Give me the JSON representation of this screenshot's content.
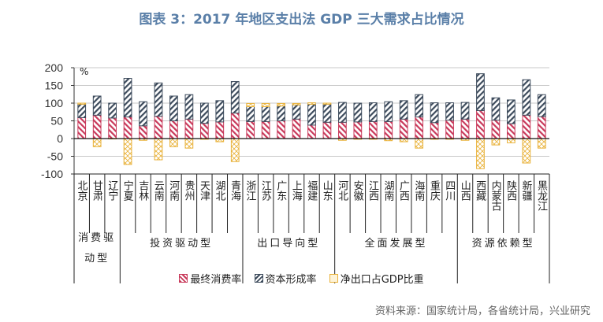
{
  "title": "图表 3：2017 年地区支出法 GDP 三大需求占比情况",
  "source": "资料来源：国家统计局，各省统计局，兴业研究",
  "chart_data": {
    "type": "bar",
    "stacked": true,
    "unit": "%",
    "ylim": [
      -100,
      200
    ],
    "yticks": [
      -100,
      -50,
      0,
      50,
      100,
      150,
      200
    ],
    "grid": true,
    "legend_position": "bottom",
    "categories": [
      "北京",
      "甘肃",
      "辽宁",
      "宁夏",
      "吉林",
      "云南",
      "河南",
      "贵州",
      "天津",
      "湖北",
      "青海",
      "浙江",
      "江苏",
      "广东",
      "上海",
      "福建",
      "山东",
      "河北",
      "安徽",
      "江西",
      "湖南",
      "广西",
      "海南",
      "重庆",
      "四川",
      "山西",
      "西藏",
      "内蒙古",
      "陕西",
      "新疆",
      "黑龙江"
    ],
    "groups": [
      {
        "name": "消费驱动型",
        "count": 3
      },
      {
        "name": "投资驱动型",
        "count": 8
      },
      {
        "name": "出口导向型",
        "count": 6
      },
      {
        "name": "全面发展型",
        "count": 8
      },
      {
        "name": "资源依赖型",
        "count": 6
      }
    ],
    "series": [
      {
        "name": "最终消费率",
        "color": "#c8395a",
        "values": [
          59,
          66,
          58,
          61,
          36,
          63,
          50,
          55,
          43,
          47,
          72,
          48,
          48,
          50,
          55,
          38,
          46,
          46,
          47,
          48,
          48,
          55,
          61,
          45,
          52,
          55,
          79,
          52,
          42,
          66,
          62
        ]
      },
      {
        "name": "资本形成率",
        "color": "#3d4b5c",
        "values": [
          38,
          54,
          42,
          109,
          68,
          94,
          70,
          69,
          57,
          60,
          89,
          42,
          42,
          42,
          40,
          59,
          51,
          56,
          53,
          53,
          56,
          52,
          63,
          56,
          49,
          47,
          104,
          63,
          67,
          100,
          62
        ]
      },
      {
        "name": "净出口占GDP比重",
        "color": "#e9b23a",
        "values": [
          3,
          -23,
          -1,
          -73,
          -5,
          -60,
          -23,
          -27,
          -2,
          -9,
          -65,
          9,
          9,
          7,
          4,
          4,
          3,
          -5,
          -2,
          -2,
          -6,
          -9,
          -27,
          -2,
          -2,
          -5,
          -85,
          -18,
          -12,
          -69,
          -27
        ]
      }
    ]
  }
}
